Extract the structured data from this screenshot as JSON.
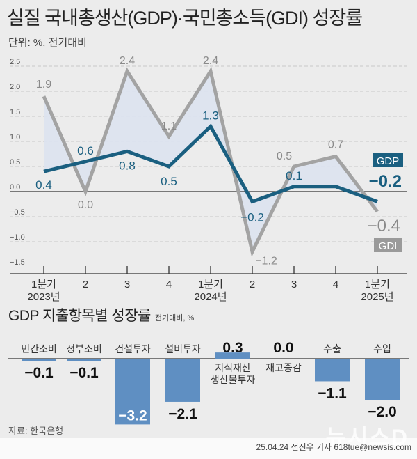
{
  "header": {
    "title": "실질 국내총생산(GDP)·국민총소득(GDI) 성장률",
    "unit": "단위: %, 전기대비"
  },
  "chart_data": [
    {
      "type": "line",
      "title": "실질 국내총생산(GDP)·국민총소득(GDI) 성장률",
      "ylabel": "%",
      "xlabel": "",
      "ylim": [
        -1.5,
        2.5
      ],
      "yticks": [
        2.5,
        2.0,
        1.5,
        1.0,
        0.5,
        0.0,
        -0.5,
        -1.0,
        -1.5
      ],
      "ytick_labels": [
        "2.5",
        "2.0",
        "1.5",
        "1.0",
        "0.5",
        "0.0",
        "−0.5",
        "−1.0",
        "−1.5"
      ],
      "grid": true,
      "categories": [
        {
          "top": "1분기",
          "bottom": "2023년"
        },
        {
          "top": "2",
          "bottom": ""
        },
        {
          "top": "3",
          "bottom": ""
        },
        {
          "top": "4",
          "bottom": ""
        },
        {
          "top": "1분기",
          "bottom": "2024년"
        },
        {
          "top": "2",
          "bottom": ""
        },
        {
          "top": "3",
          "bottom": ""
        },
        {
          "top": "4",
          "bottom": ""
        },
        {
          "top": "1분기",
          "bottom": "2025년"
        }
      ],
      "series": [
        {
          "name": "GDI",
          "color": "#a3a3a3",
          "values": [
            1.9,
            0.0,
            2.4,
            1.1,
            2.4,
            -1.2,
            0.5,
            0.7,
            -0.4
          ],
          "labels": [
            "1.9",
            "0.0",
            "2.4",
            "1.1",
            "2.4",
            "−1.2",
            "0.5",
            "0.7",
            "−0.4"
          ]
        },
        {
          "name": "GDP",
          "color": "#1a5f80",
          "values": [
            0.4,
            0.6,
            0.8,
            0.5,
            1.3,
            -0.2,
            0.1,
            0.1,
            -0.2
          ],
          "labels": [
            "0.4",
            "0.6",
            "0.8",
            "0.5",
            "1.3",
            "−0.2",
            "0.1",
            "",
            "−0.2"
          ]
        }
      ],
      "fill_between_color": "#dde3ef",
      "legend": {
        "position": "right",
        "items": [
          "GDP",
          "GDI"
        ]
      }
    },
    {
      "type": "bar",
      "title": "GDP 지출항목별 성장률",
      "unit": "전기대비, %",
      "categories": [
        "민간소비",
        "정부소비",
        "건설투자",
        "설비투자",
        "지식재산 생산물투자",
        "재고증감",
        "수출",
        "수입"
      ],
      "category_lines": [
        [
          "민간소비"
        ],
        [
          "정부소비"
        ],
        [
          "건설투자"
        ],
        [
          "설비투자"
        ],
        [
          "지식재산",
          "생산물투자"
        ],
        [
          "재고증감"
        ],
        [
          "수출"
        ],
        [
          "수입"
        ]
      ],
      "values": [
        -0.1,
        -0.1,
        -3.2,
        -2.1,
        0.3,
        0.0,
        -1.1,
        -2.0
      ],
      "value_labels": [
        "−0.1",
        "−0.1",
        "−3.2",
        "−2.1",
        "0.3",
        "0.0",
        "−1.1",
        "−2.0"
      ],
      "bar_color": "#5f8fc2"
    }
  ],
  "sub": {
    "title": "GDP 지출항목별 성장률",
    "unit": "전기대비, %"
  },
  "footer": {
    "source": "자료: 한국은행",
    "credit": "25.04.24 전진우 기자 618tue@newsis.com",
    "watermark": "뉴시스D"
  }
}
